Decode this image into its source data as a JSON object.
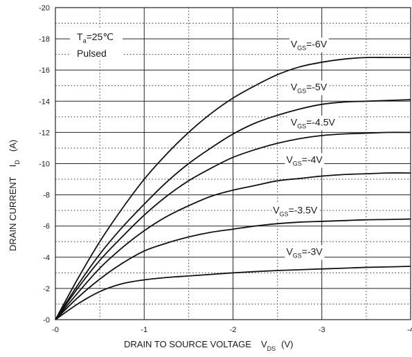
{
  "chart_data": {
    "type": "line",
    "title": "",
    "xlabel": "DRAIN TO SOURCE VOLTAGE",
    "xlabel_symbol": "V",
    "xlabel_symbol_sub": "DS",
    "xlabel_unit": "(V)",
    "ylabel": "DRAIN CURRENT",
    "ylabel_symbol": "I",
    "ylabel_symbol_sub": "D",
    "ylabel_unit": "(A)",
    "xlim": [
      0,
      -4
    ],
    "ylim": [
      0,
      -20
    ],
    "x_ticks": [
      "-0",
      "-1",
      "-2",
      "-3",
      "-4"
    ],
    "y_ticks": [
      "-0",
      "-2",
      "-4",
      "-6",
      "-8",
      "-10",
      "-12",
      "-14",
      "-16",
      "-18",
      "-20"
    ],
    "grid": "solid major, dotted minor",
    "annotation": {
      "line1_prefix": "T",
      "line1_sub": "a",
      "line1_suffix": "=25℃",
      "line2": "Pulsed",
      "placement": "top-left"
    },
    "series": [
      {
        "label_prefix": "V",
        "label_sub": "GS",
        "label_suffix": "=-6V",
        "x": [
          0,
          -0.25,
          -0.5,
          -0.75,
          -1,
          -1.25,
          -1.5,
          -1.75,
          -2,
          -2.25,
          -2.5,
          -2.75,
          -3,
          -3.25,
          -3.5,
          -3.75,
          -4
        ],
        "y": [
          0,
          -2.6,
          -5.0,
          -7.1,
          -9.0,
          -10.6,
          -12.0,
          -13.2,
          -14.2,
          -15.0,
          -15.7,
          -16.2,
          -16.5,
          -16.7,
          -16.8,
          -16.8,
          -16.8
        ]
      },
      {
        "label_prefix": "V",
        "label_sub": "GS",
        "label_suffix": "=-5V",
        "x": [
          0,
          -0.25,
          -0.5,
          -0.75,
          -1,
          -1.25,
          -1.5,
          -1.75,
          -2,
          -2.25,
          -2.5,
          -2.75,
          -3,
          -3.25,
          -3.5,
          -3.75,
          -4
        ],
        "y": [
          0,
          -2.2,
          -4.2,
          -5.9,
          -7.4,
          -8.8,
          -10.0,
          -11.0,
          -11.9,
          -12.6,
          -13.1,
          -13.5,
          -13.8,
          -13.95,
          -14.0,
          -14.05,
          -14.1
        ]
      },
      {
        "label_prefix": "V",
        "label_sub": "GS",
        "label_suffix": "=-4.5V",
        "x": [
          0,
          -0.25,
          -0.5,
          -0.75,
          -1,
          -1.25,
          -1.5,
          -1.75,
          -2,
          -2.25,
          -2.5,
          -2.75,
          -3,
          -3.25,
          -3.5,
          -3.75,
          -4
        ],
        "y": [
          0,
          -2.0,
          -3.8,
          -5.3,
          -6.7,
          -7.9,
          -8.9,
          -9.7,
          -10.4,
          -10.9,
          -11.3,
          -11.6,
          -11.8,
          -11.9,
          -11.95,
          -12.0,
          -12.0
        ]
      },
      {
        "label_prefix": "V",
        "label_sub": "GS",
        "label_suffix": "=-4V",
        "x": [
          0,
          -0.25,
          -0.5,
          -0.75,
          -1,
          -1.25,
          -1.5,
          -1.75,
          -2,
          -2.25,
          -2.5,
          -2.75,
          -3,
          -3.25,
          -3.5,
          -3.75,
          -4
        ],
        "y": [
          0,
          -1.7,
          -3.3,
          -4.6,
          -5.7,
          -6.6,
          -7.3,
          -7.9,
          -8.3,
          -8.6,
          -8.9,
          -9.05,
          -9.2,
          -9.3,
          -9.35,
          -9.4,
          -9.4
        ]
      },
      {
        "label_prefix": "V",
        "label_sub": "GS",
        "label_suffix": "=-3.5V",
        "x": [
          0,
          -0.25,
          -0.5,
          -0.75,
          -1,
          -1.25,
          -1.5,
          -1.75,
          -2,
          -2.25,
          -2.5,
          -2.75,
          -3,
          -3.25,
          -3.5,
          -3.75,
          -4
        ],
        "y": [
          0,
          -1.4,
          -2.6,
          -3.6,
          -4.4,
          -4.9,
          -5.3,
          -5.6,
          -5.8,
          -6.0,
          -6.15,
          -6.25,
          -6.3,
          -6.35,
          -6.4,
          -6.42,
          -6.45
        ]
      },
      {
        "label_prefix": "V",
        "label_sub": "GS",
        "label_suffix": "=-3V",
        "x": [
          0,
          -0.25,
          -0.5,
          -0.75,
          -1,
          -1.25,
          -1.5,
          -1.75,
          -2,
          -2.25,
          -2.5,
          -2.75,
          -3,
          -3.25,
          -3.5,
          -3.75,
          -4
        ],
        "y": [
          0,
          -1.0,
          -1.8,
          -2.3,
          -2.55,
          -2.7,
          -2.8,
          -2.9,
          -3.0,
          -3.08,
          -3.15,
          -3.2,
          -3.25,
          -3.3,
          -3.35,
          -3.38,
          -3.42
        ]
      }
    ]
  }
}
